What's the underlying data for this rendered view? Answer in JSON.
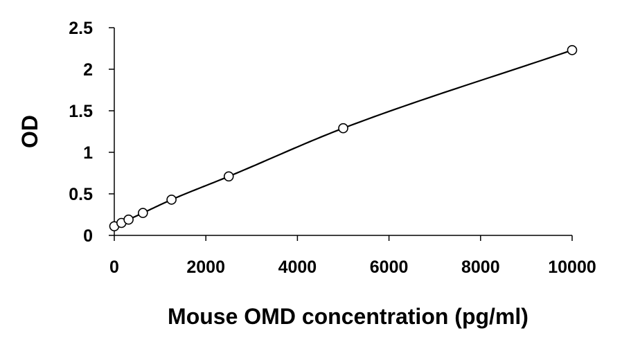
{
  "chart_data": {
    "type": "scatter",
    "title": "",
    "xlabel": "Mouse OMD concentration (pg/ml)",
    "ylabel": "OD",
    "xlim": [
      0,
      10000
    ],
    "ylim": [
      0,
      2.5
    ],
    "x_ticks": [
      0,
      2000,
      4000,
      6000,
      8000,
      10000
    ],
    "x_tick_labels": [
      "0",
      "2000",
      "4000",
      "6000",
      "8000",
      "10000"
    ],
    "y_ticks": [
      0,
      0.5,
      1,
      1.5,
      2,
      2.5
    ],
    "y_tick_labels": [
      "0",
      "0.5",
      "1",
      "1.5",
      "2",
      "2.5"
    ],
    "grid": false,
    "legend": "none",
    "marker": "open-circle",
    "fit_curve": "smooth",
    "series": [
      {
        "x": [
          0,
          156,
          312,
          625,
          1250,
          2500,
          5000,
          10000
        ],
        "y": [
          0.11,
          0.15,
          0.19,
          0.27,
          0.43,
          0.71,
          1.29,
          2.23
        ]
      }
    ],
    "colors": {
      "line": "#000000",
      "marker": "#000000",
      "background": "#ffffff"
    }
  }
}
